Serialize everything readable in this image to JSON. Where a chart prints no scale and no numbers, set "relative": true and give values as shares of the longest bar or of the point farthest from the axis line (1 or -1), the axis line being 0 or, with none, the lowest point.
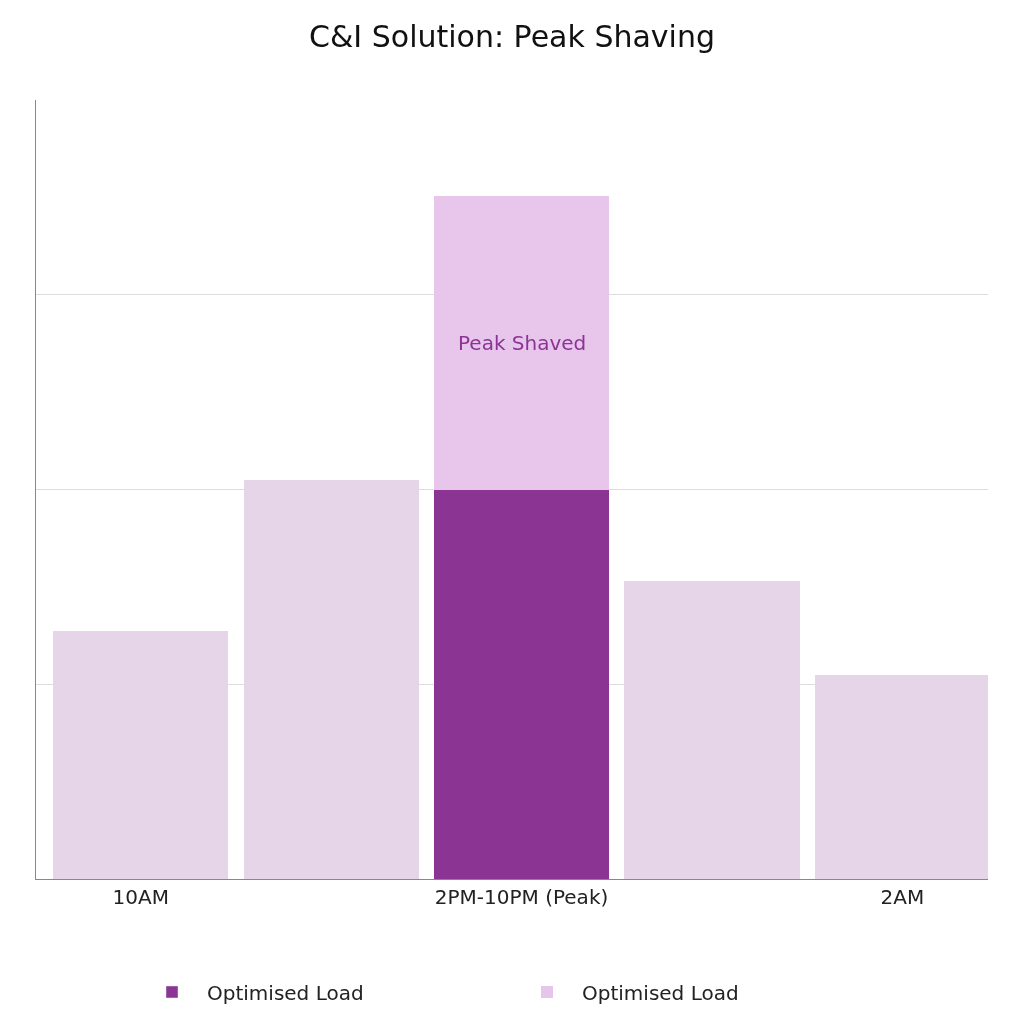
{
  "chart_data": {
    "type": "bar",
    "title": "C&I Solution: Peak Shaving",
    "categories": [
      "10AM",
      null,
      "2PM-10PM (Peak)",
      null,
      "2AM"
    ],
    "relative": true,
    "stacked": true,
    "grid": "y",
    "legend": "bottom",
    "series": [
      {
        "name": "Optimised Load",
        "color": "#8b3494",
        "colors": [
          "#e6d5e8",
          "#e6d5e8",
          "#8b3494",
          "#e6d5e8",
          "#e6d5e8"
        ],
        "values": [
          0.363,
          0.584,
          0.57,
          0.436,
          0.299
        ]
      },
      {
        "name": "Optimised Load",
        "color": "#e8c6ec",
        "values": [
          null,
          null,
          0.43,
          null,
          null
        ]
      }
    ],
    "annotations": [
      "Peak Shaved"
    ]
  }
}
